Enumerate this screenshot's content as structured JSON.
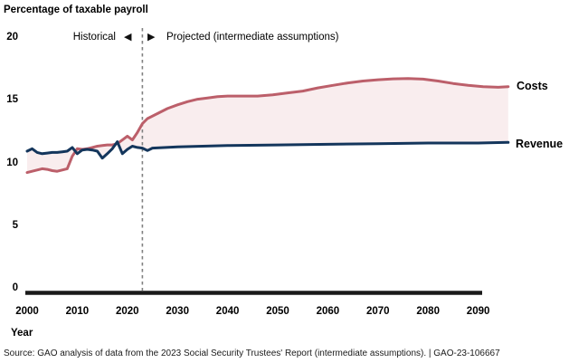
{
  "title": "Percentage of taxable payroll",
  "annotations": {
    "historical_label": "Historical",
    "projected_label": "Projected (intermediate assumptions)",
    "left_arrow": "◀",
    "right_arrow": "▶"
  },
  "axes": {
    "x_label": "Year",
    "y_ticks": [
      "20",
      "15",
      "10",
      "5",
      "0"
    ],
    "x_ticks": [
      "2000",
      "2010",
      "2020",
      "2030",
      "2040",
      "2050",
      "2060",
      "2070",
      "2080",
      "2090"
    ]
  },
  "series_labels": {
    "costs": "Costs",
    "revenue": "Revenue"
  },
  "source": "Source: GAO analysis of data from the 2023 Social Security Trustees' Report (intermediate assumptions).  |  GAO-23-106667",
  "colors": {
    "costs_line": "#bc5f6a",
    "revenue_line": "#14365c",
    "between_fill": "#f9edee",
    "divider": "#818181",
    "axis": "#1a1a1a",
    "text": "#000000"
  },
  "chart_data": {
    "type": "line",
    "title": "Percentage of taxable payroll",
    "xlabel": "Year",
    "ylabel": "Percentage of taxable payroll",
    "xlim": [
      2000,
      2096
    ],
    "ylim": [
      0,
      20
    ],
    "grid": false,
    "legend_position": "right-of-line-ends",
    "divider_year": 2023,
    "divider_note": "dashed vertical line separates Historical (left) from Projected (intermediate assumptions) (right)",
    "fill_between": [
      "Costs",
      "Revenue"
    ],
    "series": [
      {
        "name": "Costs",
        "x": [
          2000,
          2001,
          2002,
          2003,
          2004,
          2005,
          2006,
          2007,
          2008,
          2009,
          2010,
          2011,
          2012,
          2013,
          2014,
          2015,
          2016,
          2017,
          2018,
          2019,
          2020,
          2021,
          2022,
          2023,
          2024,
          2026,
          2028,
          2030,
          2032,
          2034,
          2036,
          2038,
          2040,
          2043,
          2046,
          2049,
          2052,
          2055,
          2058,
          2061,
          2064,
          2067,
          2070,
          2073,
          2076,
          2079,
          2082,
          2085,
          2088,
          2091,
          2094,
          2096
        ],
        "y": [
          9.2,
          9.3,
          9.4,
          9.5,
          9.45,
          9.35,
          9.3,
          9.4,
          9.5,
          10.5,
          11.1,
          11.05,
          11.1,
          11.2,
          11.3,
          11.35,
          11.4,
          11.4,
          11.5,
          11.8,
          12.1,
          11.8,
          12.4,
          13.1,
          13.5,
          13.9,
          14.3,
          14.6,
          14.85,
          15.05,
          15.15,
          15.25,
          15.3,
          15.3,
          15.3,
          15.4,
          15.55,
          15.7,
          15.95,
          16.15,
          16.35,
          16.5,
          16.6,
          16.67,
          16.7,
          16.65,
          16.5,
          16.3,
          16.15,
          16.05,
          16.0,
          16.05
        ]
      },
      {
        "name": "Revenue",
        "x": [
          2000,
          2001,
          2002,
          2003,
          2004,
          2005,
          2006,
          2007,
          2008,
          2009,
          2010,
          2011,
          2012,
          2013,
          2014,
          2015,
          2016,
          2017,
          2018,
          2019,
          2020,
          2021,
          2022,
          2023,
          2024,
          2025,
          2030,
          2040,
          2050,
          2060,
          2070,
          2080,
          2090,
          2096
        ],
        "y": [
          10.9,
          11.1,
          10.8,
          10.7,
          10.75,
          10.8,
          10.8,
          10.85,
          10.9,
          11.2,
          10.7,
          11.0,
          11.05,
          11.0,
          10.9,
          10.35,
          10.7,
          11.1,
          11.65,
          10.7,
          11.05,
          11.3,
          11.2,
          11.15,
          10.95,
          11.15,
          11.25,
          11.35,
          11.4,
          11.45,
          11.5,
          11.55,
          11.55,
          11.6
        ]
      }
    ]
  }
}
